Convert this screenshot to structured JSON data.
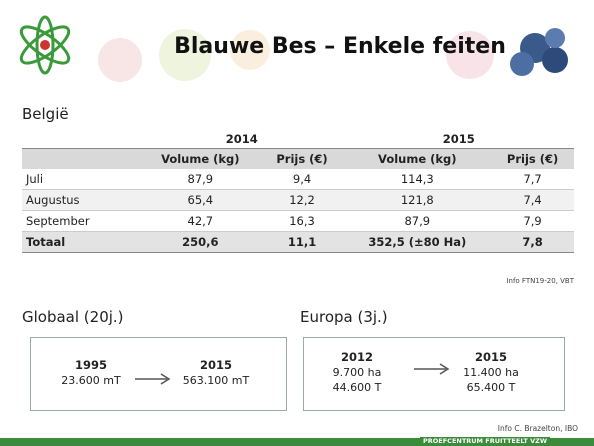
{
  "header": {
    "title": "Blauwe Bes – Enkele feiten"
  },
  "section": "België",
  "table": {
    "years": [
      "2014",
      "2015"
    ],
    "columns": [
      "Volume (kg)",
      "Prijs (€)",
      "Volume (kg)",
      "Prijs (€)"
    ],
    "rows": [
      {
        "label": "Juli",
        "cells": [
          "87,9",
          "9,4",
          "114,3",
          "7,7"
        ]
      },
      {
        "label": "Augustus",
        "cells": [
          "65,4",
          "12,2",
          "121,8",
          "7,4"
        ]
      },
      {
        "label": "September",
        "cells": [
          "42,7",
          "16,3",
          "87,9",
          "7,9"
        ]
      }
    ],
    "total": {
      "label": "Totaal",
      "cells": [
        "250,6",
        "11,1",
        "352,5 (±80 Ha)",
        "7,8"
      ]
    }
  },
  "source": "Info FTN19-20, VBT",
  "global": {
    "heading": "Globaal (20j.)",
    "from": {
      "year": "1995",
      "lines": [
        "23.600 mT"
      ]
    },
    "to": {
      "year": "2015",
      "lines": [
        "563.100 mT"
      ]
    }
  },
  "europe": {
    "heading": "Europa (3j.)",
    "from": {
      "year": "2012",
      "lines": [
        "9.700 ha",
        "44.600 T"
      ]
    },
    "to": {
      "year": "2015",
      "lines": [
        "11.400 ha",
        "65.400 T"
      ]
    }
  },
  "footer": {
    "info": "Info C. Brazelton, IBO",
    "organisation": "PROEFCENTRUM FRUITTEELT VZW"
  }
}
